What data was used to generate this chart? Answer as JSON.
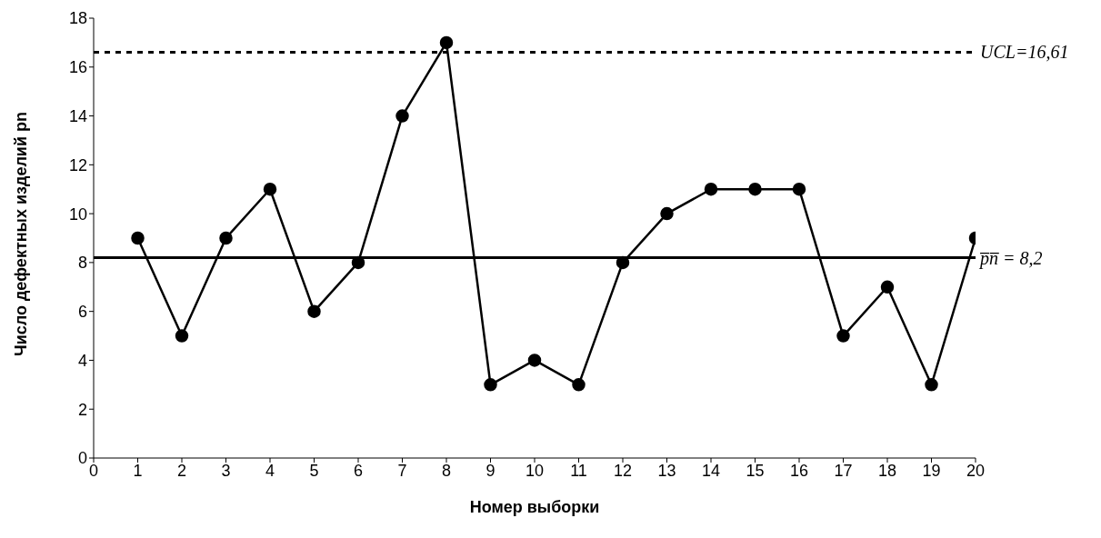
{
  "chart_data": {
    "type": "line",
    "xlabel": "Номер выборки",
    "ylabel": "Число дефектных изделий pn",
    "x": [
      1,
      2,
      3,
      4,
      5,
      6,
      7,
      8,
      9,
      10,
      11,
      12,
      13,
      14,
      15,
      16,
      17,
      18,
      19,
      20
    ],
    "series": [
      {
        "color": "#000000",
        "values": [
          9,
          5,
          9,
          11,
          6,
          8,
          14,
          17,
          3,
          4,
          3,
          8,
          10,
          11,
          11,
          11,
          5,
          7,
          3,
          9
        ]
      }
    ],
    "xlim": [
      0,
      20
    ],
    "xticks": [
      0,
      1,
      2,
      3,
      4,
      5,
      6,
      7,
      8,
      9,
      10,
      11,
      12,
      13,
      14,
      15,
      16,
      17,
      18,
      19,
      20
    ],
    "ylim": [
      0,
      18
    ],
    "yticks": [
      0,
      2,
      4,
      6,
      8,
      10,
      12,
      14,
      16,
      18
    ],
    "ref_lines": [
      {
        "axis": "y",
        "value": 16.61,
        "label": "UCL=16,61",
        "line_style": "dashed",
        "color": "#000000"
      },
      {
        "axis": "y",
        "value": 8.2,
        "label": "p̅n̅ = 8,2",
        "line_style": "solid",
        "color": "#000000"
      }
    ],
    "grid": false,
    "legend": false,
    "marker": "circle",
    "line_style": "solid"
  }
}
